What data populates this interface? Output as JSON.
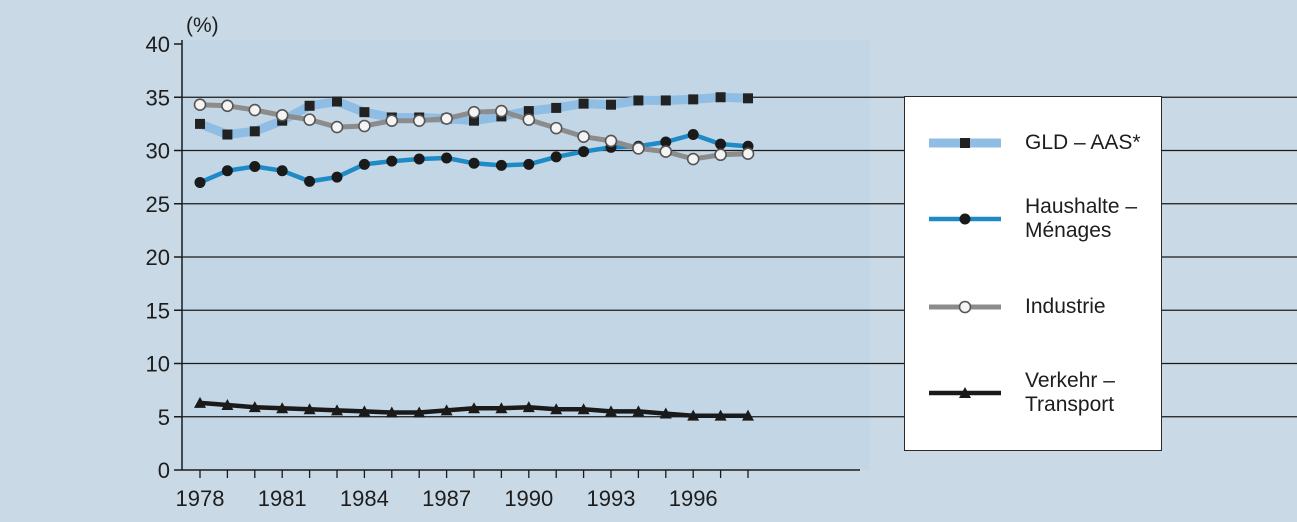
{
  "chart_data": {
    "type": "line",
    "ylabel": "(%)",
    "ylim": [
      0,
      40
    ],
    "yticks": [
      "0",
      "5",
      "10",
      "15",
      "20",
      "25",
      "30",
      "35",
      "40"
    ],
    "xticks": [
      "1978",
      "1981",
      "1984",
      "1987",
      "1990",
      "1993",
      "1996"
    ],
    "xlim": [
      1978,
      1998.5
    ],
    "grid": "horizontal",
    "legend_position": "right",
    "x": [
      1978,
      1979,
      1980,
      1981,
      1982,
      1983,
      1984,
      1985,
      1986,
      1987,
      1988,
      1989,
      1990,
      1991,
      1992,
      1993,
      1994,
      1995,
      1996,
      1997,
      1998
    ],
    "series": [
      {
        "name": "GLD – AAS*",
        "marker": "square",
        "color": "#8fbde3",
        "values": [
          32.5,
          31.5,
          31.8,
          32.8,
          34.2,
          34.6,
          33.6,
          33.1,
          33.1,
          33.0,
          32.8,
          33.2,
          33.7,
          34.0,
          34.4,
          34.3,
          34.7,
          34.7,
          34.8,
          35.0,
          34.9
        ]
      },
      {
        "name": "Haushalte –\nMénages",
        "marker": "circle",
        "color": "#1e8bc6",
        "values": [
          27.0,
          28.1,
          28.5,
          28.1,
          27.1,
          27.5,
          28.7,
          29.0,
          29.2,
          29.3,
          28.8,
          28.6,
          28.7,
          29.4,
          29.9,
          30.3,
          30.4,
          30.8,
          31.5,
          30.6,
          30.4
        ]
      },
      {
        "name": "Industrie",
        "marker": "open-circle",
        "color": "#8c8c8c",
        "values": [
          34.3,
          34.2,
          33.8,
          33.3,
          32.9,
          32.2,
          32.3,
          32.8,
          32.8,
          33.0,
          33.6,
          33.7,
          32.9,
          32.1,
          31.3,
          30.9,
          30.2,
          29.9,
          29.2,
          29.6,
          29.7
        ]
      },
      {
        "name": "Verkehr –\nTransport",
        "marker": "triangle",
        "color": "#1a1a1a",
        "values": [
          6.3,
          6.1,
          5.9,
          5.8,
          5.7,
          5.6,
          5.5,
          5.4,
          5.4,
          5.6,
          5.8,
          5.8,
          5.9,
          5.7,
          5.7,
          5.5,
          5.5,
          5.3,
          5.1,
          5.1,
          5.1
        ]
      }
    ]
  },
  "colors": {
    "background": "#c9d9e6",
    "plot_background": "#c3d6e6",
    "gridline": "#1a1a1a"
  }
}
